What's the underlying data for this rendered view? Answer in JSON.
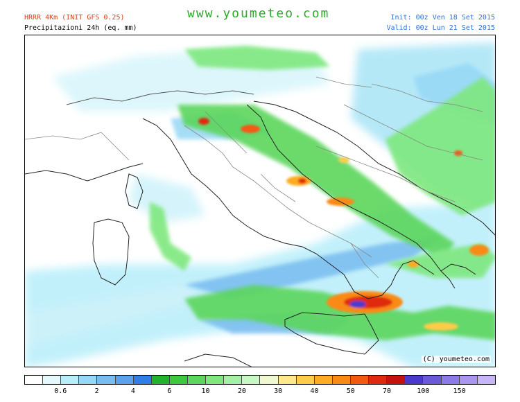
{
  "header": {
    "model": "HRRR 4Km (INIT GFS 0.25)",
    "variable": "Precipitazioni 24h (eq. mm)",
    "brand": "www.youmeteo.com",
    "init": "Init: 00z Ven 18 Set 2015",
    "valid": "Valid: 00z Lun 21 Set 2015"
  },
  "map": {
    "region": "Italy and central Mediterranean",
    "copyright": "(C) youmeteo.com"
  },
  "colorbar": {
    "colors": [
      "#ffffff",
      "#e4f9fb",
      "#b8eefa",
      "#96d8f5",
      "#78bcf0",
      "#5aa3ec",
      "#2f7fe6",
      "#22b22c",
      "#3ec83e",
      "#5cd65c",
      "#7ee87e",
      "#a4f0a4",
      "#c7f7c2",
      "#f0f8d0",
      "#fde88c",
      "#fccc4a",
      "#fcab22",
      "#f98a16",
      "#f25a12",
      "#e02a10",
      "#c4120e",
      "#4a3acb",
      "#6a5ad9",
      "#8c7ae6",
      "#ab96ef",
      "#c8b5f7"
    ],
    "labels": [
      {
        "text": "0.6",
        "boundary": 2
      },
      {
        "text": "2",
        "boundary": 4
      },
      {
        "text": "4",
        "boundary": 6
      },
      {
        "text": "6",
        "boundary": 8
      },
      {
        "text": "10",
        "boundary": 10
      },
      {
        "text": "20",
        "boundary": 12
      },
      {
        "text": "30",
        "boundary": 14
      },
      {
        "text": "40",
        "boundary": 16
      },
      {
        "text": "50",
        "boundary": 18
      },
      {
        "text": "70",
        "boundary": 20
      },
      {
        "text": "100",
        "boundary": 22
      },
      {
        "text": "150",
        "boundary": 24
      }
    ]
  }
}
